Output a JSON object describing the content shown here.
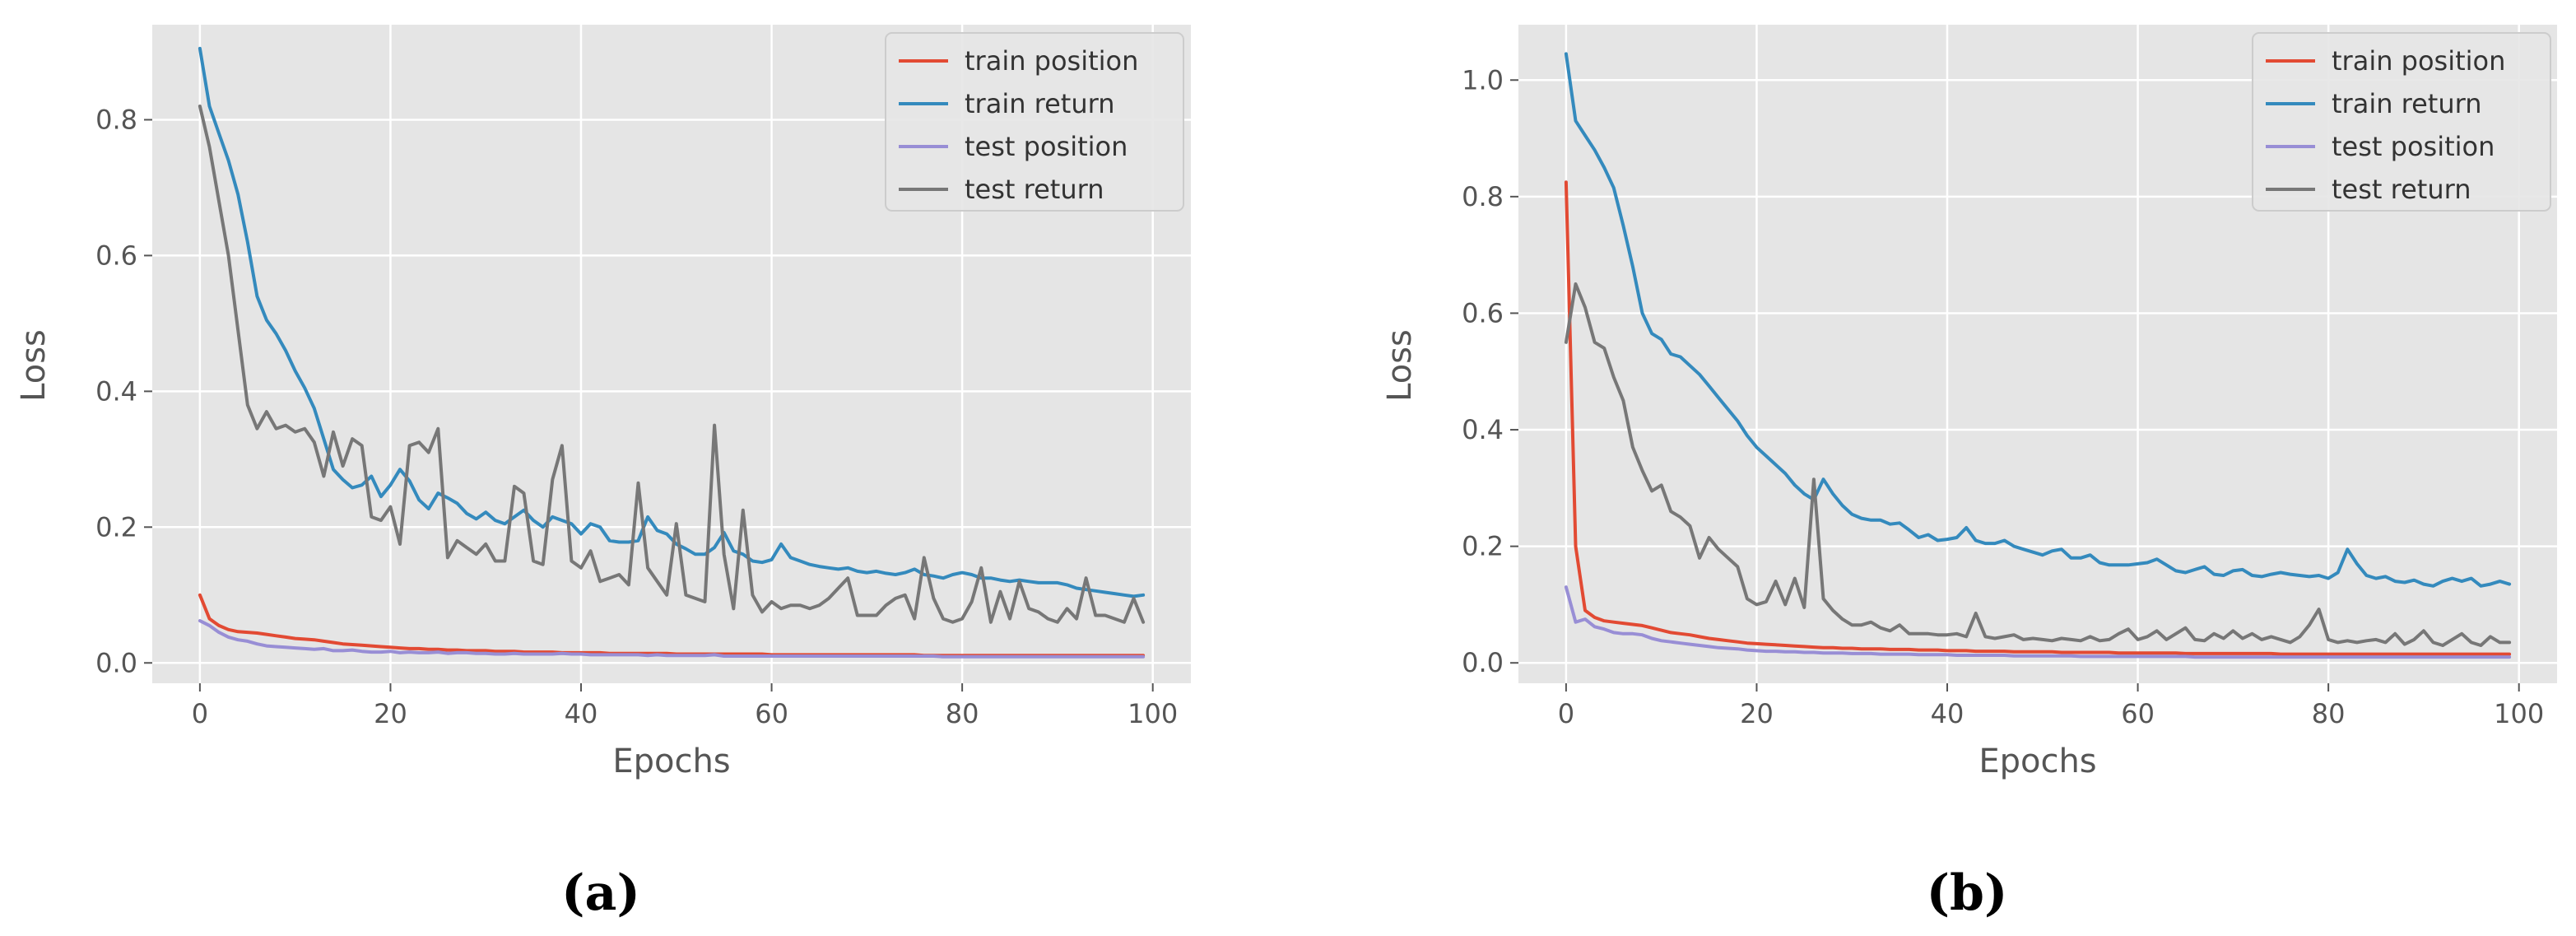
{
  "chart_data": [
    {
      "type": "line",
      "caption": "(a)",
      "xlabel": "Epochs",
      "ylabel": "Loss",
      "xlim": [
        -5,
        104
      ],
      "ylim": [
        -0.03,
        0.94
      ],
      "xticks": [
        "0",
        "20",
        "40",
        "60",
        "80",
        "100"
      ],
      "yticks": [
        "0.0",
        "0.2",
        "0.4",
        "0.6",
        "0.8"
      ],
      "grid": true,
      "legend_position": "top-right",
      "series": [
        {
          "name": "train position",
          "color": "#E24A33",
          "values": [
            0.1,
            0.065,
            0.055,
            0.049,
            0.046,
            0.045,
            0.044,
            0.042,
            0.04,
            0.038,
            0.036,
            0.035,
            0.034,
            0.032,
            0.03,
            0.028,
            0.027,
            0.026,
            0.025,
            0.024,
            0.023,
            0.022,
            0.021,
            0.021,
            0.02,
            0.02,
            0.019,
            0.019,
            0.018,
            0.018,
            0.018,
            0.017,
            0.017,
            0.017,
            0.016,
            0.016,
            0.016,
            0.016,
            0.015,
            0.015,
            0.015,
            0.015,
            0.015,
            0.014,
            0.014,
            0.014,
            0.014,
            0.014,
            0.014,
            0.014,
            0.013,
            0.013,
            0.013,
            0.013,
            0.013,
            0.013,
            0.013,
            0.013,
            0.013,
            0.013,
            0.012,
            0.012,
            0.012,
            0.012,
            0.012,
            0.012,
            0.012,
            0.012,
            0.012,
            0.012,
            0.012,
            0.012,
            0.012,
            0.012,
            0.012,
            0.012,
            0.011,
            0.011,
            0.011,
            0.011,
            0.011,
            0.011,
            0.011,
            0.011,
            0.011,
            0.011,
            0.011,
            0.011,
            0.011,
            0.011,
            0.011,
            0.011,
            0.011,
            0.011,
            0.011,
            0.011,
            0.011,
            0.011,
            0.011,
            0.011
          ]
        },
        {
          "name": "train return",
          "color": "#348ABD",
          "values": [
            0.905,
            0.82,
            0.78,
            0.74,
            0.69,
            0.62,
            0.54,
            0.505,
            0.485,
            0.46,
            0.43,
            0.405,
            0.375,
            0.33,
            0.285,
            0.27,
            0.258,
            0.262,
            0.275,
            0.245,
            0.262,
            0.285,
            0.268,
            0.24,
            0.227,
            0.25,
            0.243,
            0.235,
            0.22,
            0.212,
            0.222,
            0.21,
            0.205,
            0.215,
            0.225,
            0.21,
            0.2,
            0.215,
            0.21,
            0.205,
            0.19,
            0.205,
            0.2,
            0.18,
            0.178,
            0.178,
            0.18,
            0.215,
            0.195,
            0.19,
            0.175,
            0.168,
            0.16,
            0.16,
            0.17,
            0.192,
            0.165,
            0.16,
            0.15,
            0.148,
            0.152,
            0.175,
            0.155,
            0.15,
            0.145,
            0.142,
            0.14,
            0.138,
            0.14,
            0.135,
            0.133,
            0.135,
            0.132,
            0.13,
            0.133,
            0.138,
            0.13,
            0.128,
            0.125,
            0.13,
            0.133,
            0.13,
            0.125,
            0.125,
            0.122,
            0.12,
            0.122,
            0.12,
            0.118,
            0.118,
            0.118,
            0.115,
            0.11,
            0.108,
            0.106,
            0.104,
            0.102,
            0.1,
            0.098,
            0.1
          ]
        },
        {
          "name": "test position",
          "color": "#988ED5",
          "values": [
            0.062,
            0.055,
            0.045,
            0.038,
            0.034,
            0.032,
            0.028,
            0.025,
            0.024,
            0.023,
            0.022,
            0.021,
            0.02,
            0.021,
            0.018,
            0.018,
            0.019,
            0.017,
            0.016,
            0.016,
            0.017,
            0.015,
            0.016,
            0.015,
            0.015,
            0.016,
            0.014,
            0.015,
            0.015,
            0.014,
            0.014,
            0.013,
            0.013,
            0.014,
            0.013,
            0.013,
            0.013,
            0.013,
            0.014,
            0.013,
            0.013,
            0.012,
            0.012,
            0.012,
            0.012,
            0.012,
            0.012,
            0.011,
            0.012,
            0.011,
            0.011,
            0.011,
            0.011,
            0.011,
            0.012,
            0.01,
            0.01,
            0.01,
            0.01,
            0.01,
            0.01,
            0.01,
            0.01,
            0.01,
            0.01,
            0.01,
            0.01,
            0.01,
            0.01,
            0.01,
            0.01,
            0.01,
            0.01,
            0.01,
            0.01,
            0.01,
            0.01,
            0.01,
            0.009,
            0.009,
            0.009,
            0.009,
            0.009,
            0.009,
            0.009,
            0.009,
            0.009,
            0.009,
            0.009,
            0.009,
            0.009,
            0.009,
            0.009,
            0.009,
            0.009,
            0.009,
            0.009,
            0.009,
            0.009,
            0.009
          ]
        },
        {
          "name": "test return",
          "color": "#777777",
          "values": [
            0.82,
            0.76,
            0.68,
            0.6,
            0.49,
            0.38,
            0.345,
            0.37,
            0.345,
            0.35,
            0.34,
            0.345,
            0.325,
            0.275,
            0.34,
            0.29,
            0.33,
            0.32,
            0.215,
            0.21,
            0.23,
            0.175,
            0.32,
            0.325,
            0.31,
            0.345,
            0.155,
            0.18,
            0.17,
            0.16,
            0.175,
            0.15,
            0.15,
            0.26,
            0.25,
            0.15,
            0.145,
            0.27,
            0.32,
            0.15,
            0.14,
            0.165,
            0.12,
            0.125,
            0.13,
            0.115,
            0.265,
            0.14,
            0.12,
            0.1,
            0.205,
            0.1,
            0.095,
            0.09,
            0.35,
            0.16,
            0.08,
            0.225,
            0.1,
            0.075,
            0.09,
            0.08,
            0.085,
            0.085,
            0.08,
            0.085,
            0.095,
            0.11,
            0.125,
            0.07,
            0.07,
            0.07,
            0.085,
            0.095,
            0.1,
            0.065,
            0.155,
            0.095,
            0.065,
            0.06,
            0.065,
            0.09,
            0.14,
            0.06,
            0.105,
            0.065,
            0.12,
            0.08,
            0.075,
            0.065,
            0.06,
            0.08,
            0.065,
            0.125,
            0.07,
            0.07,
            0.065,
            0.06,
            0.095,
            0.06
          ]
        }
      ]
    },
    {
      "type": "line",
      "caption": "(b)",
      "xlabel": "Epochs",
      "ylabel": "Loss",
      "xlim": [
        -5,
        104
      ],
      "ylim": [
        -0.035,
        1.095
      ],
      "xticks": [
        "0",
        "20",
        "40",
        "60",
        "80",
        "100"
      ],
      "yticks": [
        "0.0",
        "0.2",
        "0.4",
        "0.6",
        "0.8",
        "1.0"
      ],
      "grid": true,
      "legend_position": "top-right",
      "series": [
        {
          "name": "train position",
          "color": "#E24A33",
          "values": [
            0.825,
            0.2,
            0.09,
            0.078,
            0.072,
            0.07,
            0.068,
            0.066,
            0.064,
            0.06,
            0.056,
            0.052,
            0.05,
            0.048,
            0.045,
            0.042,
            0.04,
            0.038,
            0.036,
            0.034,
            0.033,
            0.032,
            0.031,
            0.03,
            0.029,
            0.028,
            0.027,
            0.026,
            0.026,
            0.025,
            0.025,
            0.024,
            0.024,
            0.024,
            0.023,
            0.023,
            0.023,
            0.022,
            0.022,
            0.022,
            0.021,
            0.021,
            0.021,
            0.02,
            0.02,
            0.02,
            0.02,
            0.019,
            0.019,
            0.019,
            0.019,
            0.019,
            0.018,
            0.018,
            0.018,
            0.018,
            0.018,
            0.018,
            0.017,
            0.017,
            0.017,
            0.017,
            0.017,
            0.017,
            0.017,
            0.016,
            0.016,
            0.016,
            0.016,
            0.016,
            0.016,
            0.016,
            0.016,
            0.016,
            0.016,
            0.015,
            0.015,
            0.015,
            0.015,
            0.015,
            0.015,
            0.015,
            0.015,
            0.015,
            0.015,
            0.015,
            0.015,
            0.015,
            0.015,
            0.015,
            0.015,
            0.015,
            0.015,
            0.015,
            0.015,
            0.015,
            0.015,
            0.015,
            0.015,
            0.015
          ]
        },
        {
          "name": "train return",
          "color": "#348ABD",
          "values": [
            1.045,
            0.93,
            0.905,
            0.88,
            0.85,
            0.815,
            0.75,
            0.68,
            0.6,
            0.565,
            0.555,
            0.53,
            0.525,
            0.51,
            0.495,
            0.475,
            0.455,
            0.435,
            0.415,
            0.39,
            0.37,
            0.355,
            0.34,
            0.325,
            0.305,
            0.29,
            0.28,
            0.315,
            0.29,
            0.27,
            0.255,
            0.248,
            0.245,
            0.245,
            0.238,
            0.24,
            0.228,
            0.215,
            0.22,
            0.21,
            0.212,
            0.215,
            0.232,
            0.21,
            0.205,
            0.205,
            0.21,
            0.2,
            0.195,
            0.19,
            0.185,
            0.192,
            0.195,
            0.18,
            0.18,
            0.185,
            0.172,
            0.168,
            0.168,
            0.168,
            0.17,
            0.172,
            0.178,
            0.168,
            0.158,
            0.155,
            0.16,
            0.165,
            0.152,
            0.15,
            0.158,
            0.16,
            0.15,
            0.148,
            0.152,
            0.155,
            0.152,
            0.15,
            0.148,
            0.15,
            0.145,
            0.155,
            0.195,
            0.17,
            0.15,
            0.145,
            0.148,
            0.14,
            0.138,
            0.142,
            0.135,
            0.132,
            0.14,
            0.145,
            0.14,
            0.145,
            0.132,
            0.135,
            0.14,
            0.135
          ]
        },
        {
          "name": "test position",
          "color": "#988ED5",
          "values": [
            0.13,
            0.07,
            0.075,
            0.062,
            0.058,
            0.052,
            0.05,
            0.05,
            0.048,
            0.042,
            0.038,
            0.036,
            0.034,
            0.032,
            0.03,
            0.028,
            0.026,
            0.025,
            0.024,
            0.022,
            0.021,
            0.02,
            0.02,
            0.019,
            0.019,
            0.018,
            0.018,
            0.017,
            0.017,
            0.017,
            0.016,
            0.016,
            0.016,
            0.015,
            0.015,
            0.015,
            0.015,
            0.014,
            0.014,
            0.014,
            0.014,
            0.013,
            0.013,
            0.013,
            0.013,
            0.013,
            0.013,
            0.012,
            0.012,
            0.012,
            0.012,
            0.012,
            0.012,
            0.012,
            0.011,
            0.011,
            0.011,
            0.011,
            0.011,
            0.011,
            0.011,
            0.011,
            0.011,
            0.011,
            0.011,
            0.011,
            0.01,
            0.01,
            0.01,
            0.01,
            0.01,
            0.01,
            0.01,
            0.01,
            0.01,
            0.01,
            0.01,
            0.01,
            0.01,
            0.01,
            0.01,
            0.01,
            0.01,
            0.01,
            0.01,
            0.01,
            0.01,
            0.01,
            0.01,
            0.01,
            0.01,
            0.01,
            0.01,
            0.01,
            0.01,
            0.01,
            0.01,
            0.01,
            0.01,
            0.01
          ]
        },
        {
          "name": "test return",
          "color": "#777777",
          "values": [
            0.55,
            0.65,
            0.61,
            0.55,
            0.54,
            0.49,
            0.45,
            0.37,
            0.33,
            0.295,
            0.305,
            0.26,
            0.25,
            0.235,
            0.18,
            0.215,
            0.195,
            0.18,
            0.165,
            0.11,
            0.1,
            0.105,
            0.14,
            0.1,
            0.145,
            0.095,
            0.315,
            0.11,
            0.09,
            0.075,
            0.065,
            0.065,
            0.07,
            0.06,
            0.055,
            0.065,
            0.05,
            0.05,
            0.05,
            0.048,
            0.048,
            0.05,
            0.045,
            0.085,
            0.045,
            0.042,
            0.045,
            0.048,
            0.04,
            0.042,
            0.04,
            0.038,
            0.042,
            0.04,
            0.038,
            0.045,
            0.038,
            0.04,
            0.05,
            0.058,
            0.04,
            0.045,
            0.055,
            0.04,
            0.05,
            0.06,
            0.04,
            0.038,
            0.05,
            0.042,
            0.055,
            0.042,
            0.05,
            0.04,
            0.045,
            0.04,
            0.035,
            0.045,
            0.065,
            0.092,
            0.04,
            0.035,
            0.038,
            0.035,
            0.038,
            0.04,
            0.035,
            0.05,
            0.032,
            0.04,
            0.055,
            0.035,
            0.03,
            0.04,
            0.05,
            0.035,
            0.03,
            0.045,
            0.035,
            0.035
          ]
        }
      ]
    }
  ]
}
